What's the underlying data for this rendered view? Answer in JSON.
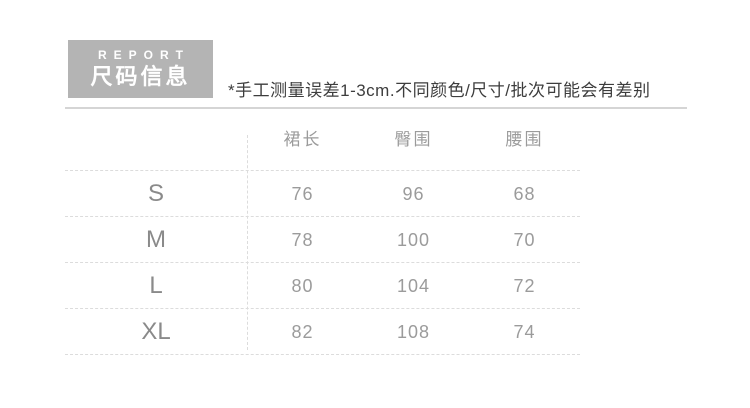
{
  "header": {
    "badge": {
      "report_label": "REPORT",
      "title": "尺码信息",
      "bg_color": "#b4b4b4",
      "text_color": "#ffffff"
    },
    "note": "*手工测量误差1-3cm.不同颜色/尺寸/批次可能会有差别"
  },
  "chart_data": {
    "type": "table",
    "title": "尺码信息",
    "note": "*手工测量误差1-3cm.不同颜色/尺寸/批次可能会有差别",
    "columns": [
      "",
      "裙长",
      "臀围",
      "腰围"
    ],
    "rows": [
      [
        "S",
        "76",
        "96",
        "68"
      ],
      [
        "M",
        "78",
        "100",
        "70"
      ],
      [
        "L",
        "80",
        "104",
        "72"
      ],
      [
        "XL",
        "82",
        "108",
        "74"
      ]
    ],
    "layout": {
      "row_separators": "dashed",
      "column_separator_after_size": "dashed",
      "line_color": "#dcdcdc"
    }
  },
  "colors": {
    "badge_gray": "#b4b4b4",
    "note_text": "#3d3d3d",
    "divider": "#d5d5d5",
    "dashed_line": "#dcdcdc",
    "table_text": "#9b9b9b",
    "size_text": "#8a8a8a"
  }
}
